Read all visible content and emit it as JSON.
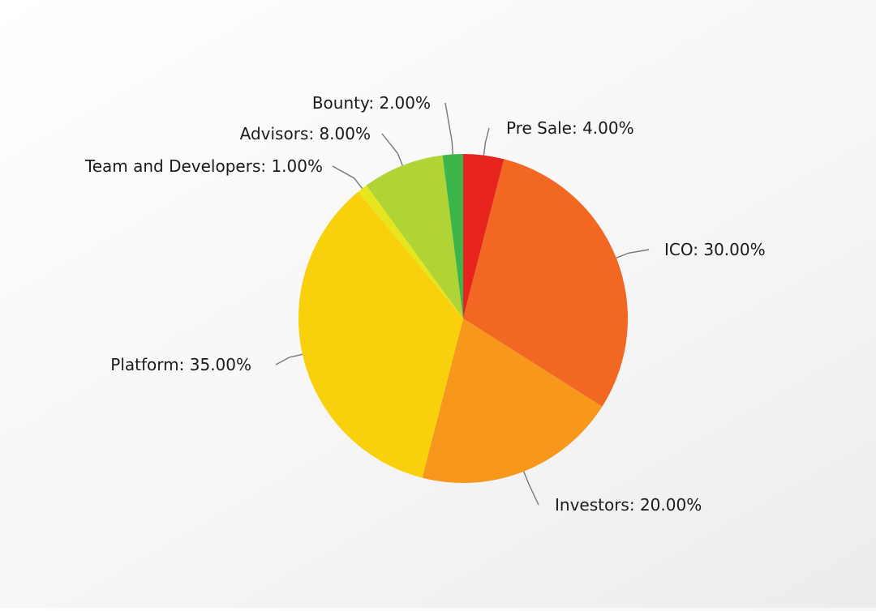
{
  "chart_data": {
    "type": "pie",
    "title": "",
    "slices": [
      {
        "label": "Pre Sale",
        "value": 4.0,
        "color": "#e8241f"
      },
      {
        "label": "ICO",
        "value": 30.0,
        "color": "#f26722"
      },
      {
        "label": "Investors",
        "value": 20.0,
        "color": "#f7981d"
      },
      {
        "label": "Platform",
        "value": 35.0,
        "color": "#f8d10c"
      },
      {
        "label": "Team and Developers",
        "value": 1.0,
        "color": "#e7e51d"
      },
      {
        "label": "Advisors",
        "value": 8.0,
        "color": "#b0d335"
      },
      {
        "label": "Bounty",
        "value": 2.0,
        "color": "#3bb54a"
      }
    ],
    "data_labels": [
      "Pre Sale: 4.00%",
      "ICO: 30.00%",
      "Investors: 20.00%",
      "Platform: 35.00%",
      "Team and Developers: 1.00%",
      "Advisors: 8.00%",
      "Bounty: 2.00%"
    ],
    "legend": false
  }
}
